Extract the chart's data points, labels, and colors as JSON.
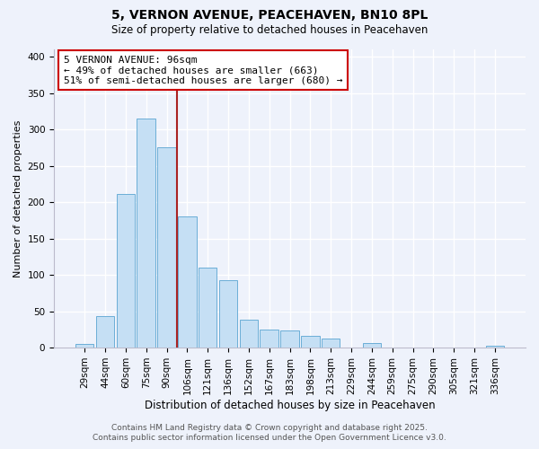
{
  "title": "5, VERNON AVENUE, PEACEHAVEN, BN10 8PL",
  "subtitle": "Size of property relative to detached houses in Peacehaven",
  "xlabel": "Distribution of detached houses by size in Peacehaven",
  "ylabel": "Number of detached properties",
  "categories": [
    "29sqm",
    "44sqm",
    "60sqm",
    "75sqm",
    "90sqm",
    "106sqm",
    "121sqm",
    "136sqm",
    "152sqm",
    "167sqm",
    "183sqm",
    "198sqm",
    "213sqm",
    "229sqm",
    "244sqm",
    "259sqm",
    "275sqm",
    "290sqm",
    "305sqm",
    "321sqm",
    "336sqm"
  ],
  "values": [
    5,
    43,
    211,
    315,
    275,
    180,
    110,
    93,
    38,
    25,
    24,
    16,
    13,
    0,
    6,
    0,
    0,
    0,
    0,
    0,
    3
  ],
  "bar_color": "#c5dff4",
  "bar_edge_color": "#6baed6",
  "vline_x_idx": 4.5,
  "vline_color": "#aa2222",
  "annotation_text": "5 VERNON AVENUE: 96sqm\n← 49% of detached houses are smaller (663)\n51% of semi-detached houses are larger (680) →",
  "annotation_box_color": "white",
  "annotation_box_edge_color": "#cc0000",
  "footer1": "Contains HM Land Registry data © Crown copyright and database right 2025.",
  "footer2": "Contains public sector information licensed under the Open Government Licence v3.0.",
  "bg_color": "#eef2fb",
  "ylim": [
    0,
    410
  ],
  "yticks": [
    0,
    50,
    100,
    150,
    200,
    250,
    300,
    350,
    400
  ],
  "grid_color": "#ffffff",
  "title_fontsize": 10,
  "subtitle_fontsize": 8.5,
  "ylabel_fontsize": 8,
  "xlabel_fontsize": 8.5,
  "tick_fontsize": 7.5,
  "footer_fontsize": 6.5
}
